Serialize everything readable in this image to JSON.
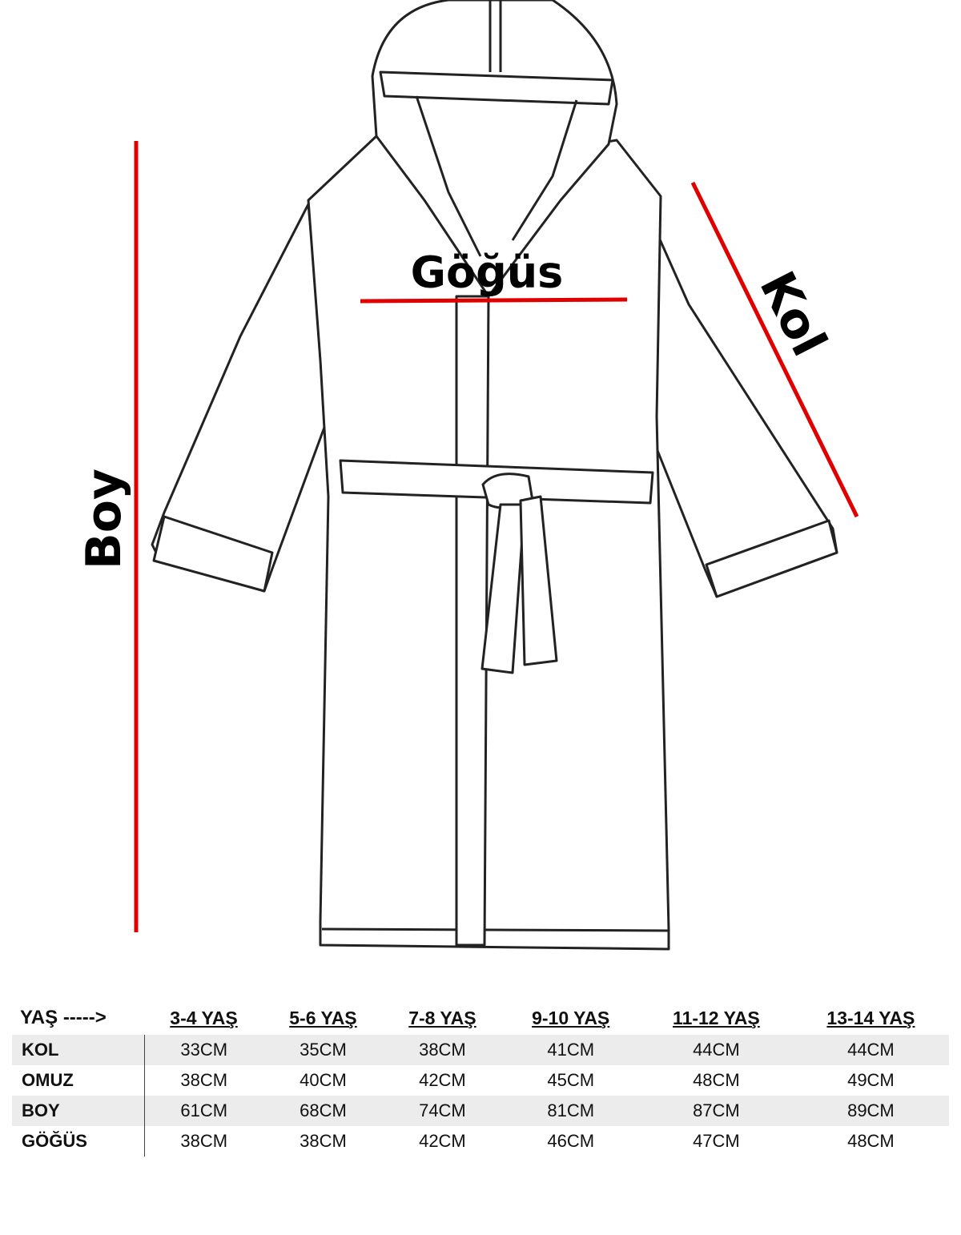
{
  "labels": {
    "boy": "Boy",
    "gogus": "Göğüs",
    "kol": "Kol"
  },
  "colors": {
    "measure_line": "#e00000",
    "shaded_row": "#ececec"
  },
  "table": {
    "corner": "YAŞ ----->",
    "columns": [
      "3-4 YAŞ",
      "5-6 YAŞ",
      "7-8 YAŞ",
      "9-10 YAŞ",
      "11-12 YAŞ",
      "13-14 YAŞ"
    ],
    "rows": [
      {
        "label": "KOL",
        "values": [
          "33CM",
          "35CM",
          "38CM",
          "41CM",
          "44CM",
          "44CM"
        ]
      },
      {
        "label": "OMUZ",
        "values": [
          "38CM",
          "40CM",
          "42CM",
          "45CM",
          "48CM",
          "49CM"
        ]
      },
      {
        "label": "BOY",
        "values": [
          "61CM",
          "68CM",
          "74CM",
          "81CM",
          "87CM",
          "89CM"
        ]
      },
      {
        "label": "GÖĞÜS",
        "values": [
          "38CM",
          "38CM",
          "42CM",
          "46CM",
          "47CM",
          "48CM"
        ]
      }
    ]
  }
}
